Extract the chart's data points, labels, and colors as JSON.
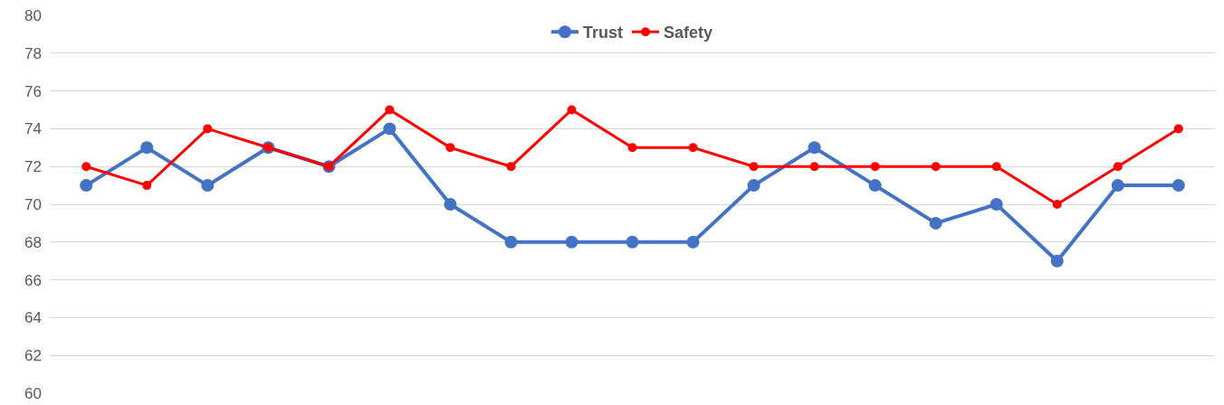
{
  "chart_data": {
    "type": "line",
    "categories": [
      null,
      null,
      null,
      null,
      null,
      null,
      null,
      null,
      null,
      null,
      null,
      null,
      null,
      null,
      null,
      null,
      null,
      null,
      null
    ],
    "series": [
      {
        "name": "Trust",
        "color": "#4472c4",
        "values": [
          71,
          73,
          71,
          73,
          72,
          74,
          70,
          68,
          68,
          68,
          68,
          71,
          73,
          71,
          69,
          70,
          67,
          71,
          71
        ]
      },
      {
        "name": "Safety",
        "color": "#ff0000",
        "values": [
          72,
          71,
          74,
          73,
          72,
          75,
          73,
          72,
          75,
          73,
          73,
          72,
          72,
          72,
          72,
          72,
          70,
          72,
          74
        ]
      }
    ],
    "ylim": [
      60,
      80
    ],
    "yticks": [
      60,
      62,
      64,
      66,
      68,
      70,
      72,
      74,
      76,
      78,
      80
    ],
    "grid": "y",
    "legend": "top",
    "marker": "circle",
    "line_style": "solid",
    "tick_labels": "y"
  }
}
